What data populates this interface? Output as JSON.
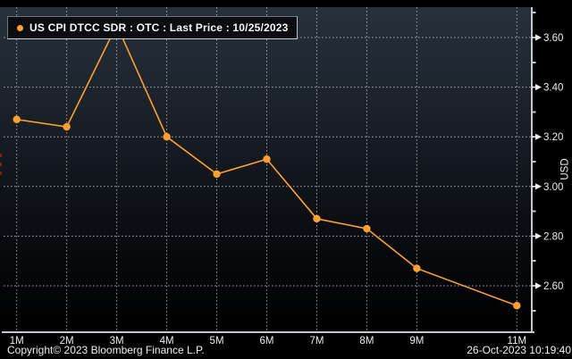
{
  "legend": {
    "label": "US CPI DTCC SDR : OTC : Last Price : 10/25/2023",
    "marker_color": "#FFA028"
  },
  "footer": {
    "copyright": "Copyright© 2023 Bloomberg Finance L.P.",
    "datetime": "26-Oct-2023 10:19:40"
  },
  "chart_data": {
    "type": "line",
    "title": "US CPI DTCC SDR : OTC : Last Price : 10/25/2023",
    "ylabel": "USD",
    "x_tick_labels": [
      "1M",
      "2M",
      "3M",
      "4M",
      "5M",
      "6M",
      "7M",
      "8M",
      "9M",
      "11M"
    ],
    "x_months": [
      1,
      2,
      3,
      4,
      5,
      6,
      7,
      8,
      9,
      11
    ],
    "values": [
      3.27,
      3.24,
      3.65,
      3.2,
      3.05,
      3.11,
      2.87,
      2.83,
      2.67,
      2.52
    ],
    "y_major_ticks": [
      3.6,
      3.4,
      3.2,
      3.0,
      2.8,
      2.6
    ],
    "y_minor_ticks": [
      3.7,
      3.5,
      3.3,
      3.1,
      2.9,
      2.7,
      2.5
    ],
    "ylim": [
      2.45,
      3.72
    ],
    "grid": "dotted, at labeled ticks only (no 10M gridline)",
    "legend_position": "top-left",
    "line_color": "#FFA028",
    "marker": "circle",
    "note": "3M peak value partially hidden behind legend box"
  },
  "colors": {
    "accent_orange": "#FFA028",
    "grid": "#c9cdd2",
    "axis": "#c4c9ce",
    "text": "#eceef0",
    "background_top": "#27313b",
    "background_bottom": "#010101"
  }
}
